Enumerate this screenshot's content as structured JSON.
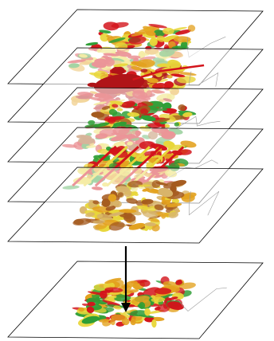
{
  "colors": {
    "background": "#ffffff",
    "layer_outline": "#000000",
    "arrow": "#000000",
    "boundary_line": "#9a9a9a",
    "palette_green": "#2e9e35",
    "palette_yellow": "#e8d63a",
    "palette_orange": "#e3a21f",
    "palette_red": "#d3141b",
    "palette_dark_red": "#b01418",
    "palette_brown": "#a45a1e",
    "palette_tan": "#d8b46a"
  },
  "layers": [
    {
      "id": "layer-1",
      "theme": "mixed-red-yellow-green",
      "colors": [
        "#2e9e35",
        "#e8d63a",
        "#e3a21f",
        "#d3141b"
      ]
    },
    {
      "id": "layer-2",
      "theme": "lake-and-river",
      "colors": [
        "#b01418",
        "#d3141b",
        "#e3a21f",
        "#e8d63a"
      ]
    },
    {
      "id": "layer-3",
      "theme": "green-yellow-brown",
      "colors": [
        "#2e9e35",
        "#e8d63a",
        "#a45a1e",
        "#d3141b"
      ]
    },
    {
      "id": "layer-4",
      "theme": "red-yellow-streaks",
      "colors": [
        "#d3141b",
        "#e8d63a",
        "#2e9e35",
        "#e3a21f"
      ]
    },
    {
      "id": "layer-5",
      "theme": "tan-brown",
      "colors": [
        "#d8b46a",
        "#a45a1e",
        "#e3a21f",
        "#e8d63a"
      ]
    }
  ],
  "result_layer": {
    "id": "result",
    "theme": "composite",
    "colors": [
      "#e8d63a",
      "#e3a21f",
      "#2e9e35",
      "#d3141b"
    ]
  },
  "arrow": {
    "direction": "down",
    "meaning": "overlay-combination"
  }
}
